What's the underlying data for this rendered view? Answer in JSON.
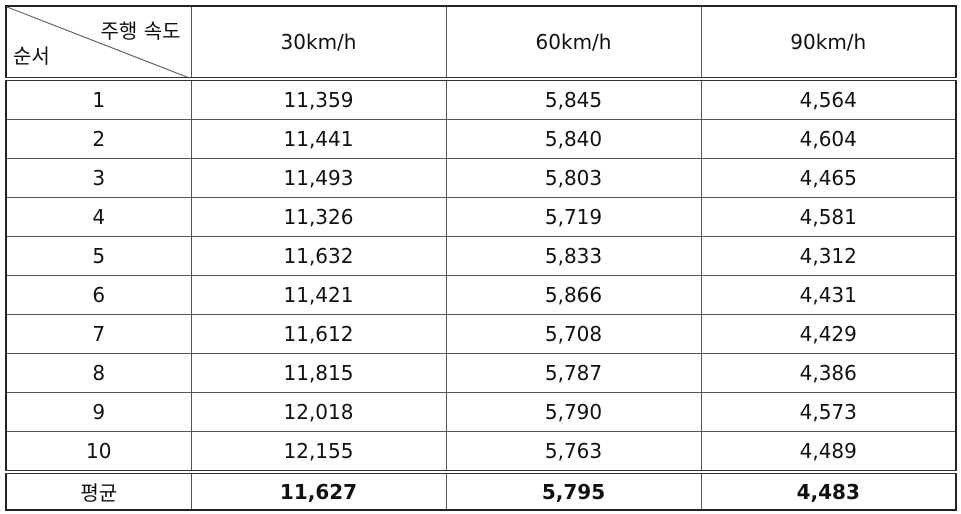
{
  "table": {
    "corner": {
      "top": "주행 속도",
      "bottom": "순서"
    },
    "columns": [
      "30km/h",
      "60km/h",
      "90km/h"
    ],
    "rows": [
      [
        "1",
        "11,359",
        "5,845",
        "4,564"
      ],
      [
        "2",
        "11,441",
        "5,840",
        "4,604"
      ],
      [
        "3",
        "11,493",
        "5,803",
        "4,465"
      ],
      [
        "4",
        "11,326",
        "5,719",
        "4,581"
      ],
      [
        "5",
        "11,632",
        "5,833",
        "4,312"
      ],
      [
        "6",
        "11,421",
        "5,866",
        "4,431"
      ],
      [
        "7",
        "11,612",
        "5,708",
        "4,429"
      ],
      [
        "8",
        "11,815",
        "5,787",
        "4,386"
      ],
      [
        "9",
        "12,018",
        "5,790",
        "4,573"
      ],
      [
        "10",
        "12,155",
        "5,763",
        "4,489"
      ]
    ],
    "footer": [
      "평균",
      "11,627",
      "5,795",
      "4,483"
    ]
  }
}
